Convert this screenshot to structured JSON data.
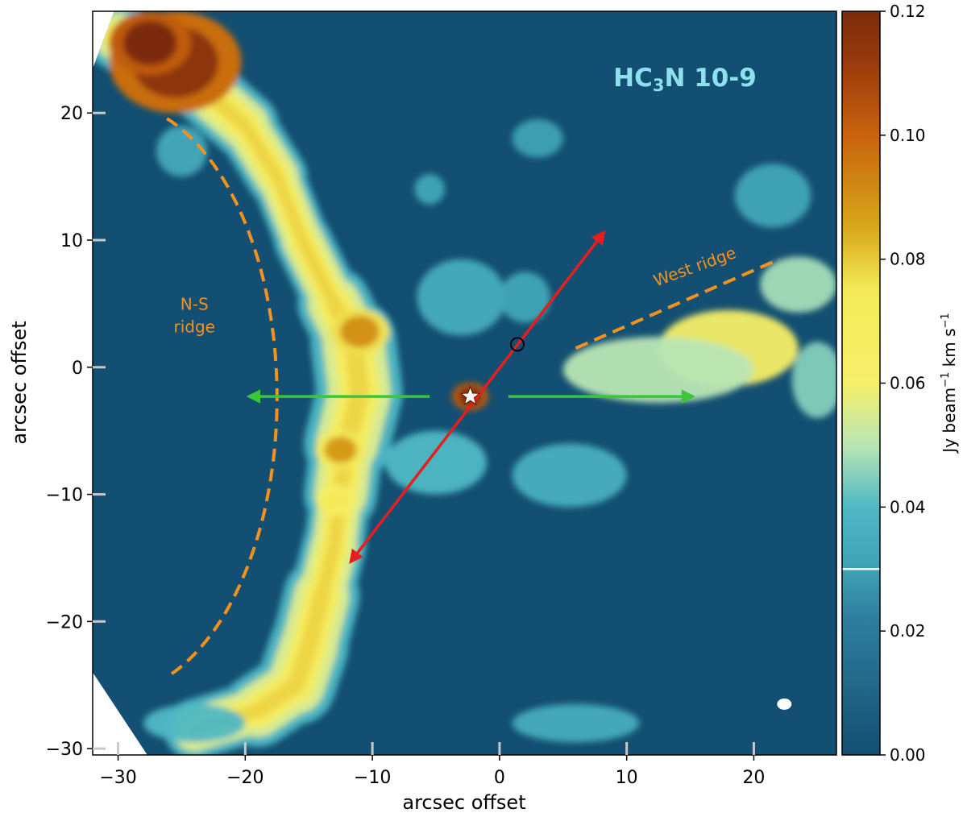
{
  "chart_data": {
    "type": "heatmap",
    "title": "HC3N 10-9",
    "title_parts": {
      "main": "HC",
      "sub": "3",
      "rest": "N 10-9"
    },
    "xlabel": "arcsec offset",
    "ylabel": "arcsec offset",
    "xlim": [
      -32,
      26.5
    ],
    "ylim": [
      -30.5,
      28
    ],
    "x_ticks": [
      -30,
      -20,
      -10,
      0,
      10,
      20
    ],
    "x_tick_labels": [
      "−30",
      "−20",
      "−10",
      "0",
      "10",
      "20"
    ],
    "y_ticks": [
      -30,
      -20,
      -10,
      0,
      10,
      20
    ],
    "y_tick_labels": [
      "−30",
      "−20",
      "−10",
      "0",
      "10",
      "20"
    ],
    "colorbar": {
      "label_main": "Jy beam",
      "label_sup1": "−1",
      "label_mid": " km s",
      "label_sup2": "−1",
      "range": [
        0.0,
        0.12
      ],
      "ticks": [
        0.0,
        0.02,
        0.04,
        0.06,
        0.08,
        0.1,
        0.12
      ],
      "tick_labels": [
        "0.00",
        "0.02",
        "0.04",
        "0.06",
        "0.08",
        "0.10",
        "0.12"
      ],
      "contour_level": 0.03
    },
    "colors": {
      "background_low": "#134f72",
      "teal": "#4fb8c4",
      "yellow": "#f6ef6a",
      "orange": "#c8630e",
      "brown": "#7b2c0a",
      "ridge_dash": "#f5921e",
      "outflow_red": "#e81d1d",
      "arrow_green": "#3bc63a",
      "title_color": "#8ee0ee"
    },
    "annotations": [
      {
        "text_lines": [
          "N-S",
          "ridge"
        ],
        "x": -24,
        "y": 4,
        "color": "#f5921e"
      },
      {
        "text": "West ridge",
        "x": 15.5,
        "y": 7.5,
        "color": "#f5921e",
        "rotation": -20
      }
    ],
    "ns_ridge_arc": {
      "center": [
        -30.5,
        -2.4
      ],
      "a": 13,
      "b": 23.3
    },
    "west_ridge_line": [
      [
        6,
        1.5
      ],
      [
        22,
        8.5
      ]
    ],
    "outflow_red": {
      "from": [
        8.2,
        10.6
      ],
      "to": [
        -11.7,
        -15.3
      ]
    },
    "green_arrows": [
      {
        "from": [
          -5.5,
          -2.3
        ],
        "to": [
          -19.7,
          -2.3
        ]
      },
      {
        "from": [
          0.7,
          -2.3
        ],
        "to": [
          15.2,
          -2.3
        ]
      }
    ],
    "star_source": [
      -2.3,
      -2.3
    ],
    "open_circle": [
      1.4,
      1.8
    ],
    "beam": [
      22.4,
      -26.5
    ],
    "emission": {
      "ridge_path": [
        [
          -30,
          26
        ],
        [
          -24,
          22.5
        ],
        [
          -20,
          19
        ],
        [
          -17.5,
          15
        ],
        [
          -15.5,
          10
        ],
        [
          -13,
          5
        ],
        [
          -11.5,
          2
        ],
        [
          -11,
          -2
        ],
        [
          -12,
          -6
        ],
        [
          -12.5,
          -10
        ],
        [
          -13,
          -14
        ],
        [
          -14,
          -18
        ],
        [
          -15,
          -22
        ],
        [
          -16,
          -25
        ],
        [
          -19,
          -27
        ],
        [
          -24,
          -28.5
        ]
      ],
      "ridge_width": [
        5,
        5.5,
        5,
        4.5,
        4,
        5,
        6.5,
        7,
        6.5,
        5,
        4.5,
        5.5,
        6.5,
        6,
        5.5,
        4
      ],
      "hotspots": [
        {
          "x": -25.5,
          "y": 24,
          "r": 4,
          "v": 0.115
        },
        {
          "x": -27.5,
          "y": 25.5,
          "r": 2.5,
          "v": 0.12
        },
        {
          "x": -11,
          "y": 2.8,
          "r": 1.8,
          "v": 0.09
        },
        {
          "x": -12.5,
          "y": -6.5,
          "r": 1.5,
          "v": 0.088
        },
        {
          "x": -12.8,
          "y": -10.5,
          "r": 1.2,
          "v": 0.075
        },
        {
          "x": -2.3,
          "y": -2.3,
          "r": 1.1,
          "v": 0.12
        }
      ],
      "blobs": [
        {
          "x": -3,
          "y": 5.5,
          "rx": 3.5,
          "ry": 3,
          "v": 0.035
        },
        {
          "x": 2,
          "y": 5.5,
          "rx": 2,
          "ry": 2,
          "v": 0.032
        },
        {
          "x": 18,
          "y": 1.5,
          "rx": 5.5,
          "ry": 3,
          "v": 0.064
        },
        {
          "x": 12.5,
          "y": -0.2,
          "rx": 7.5,
          "ry": 2.6,
          "v": 0.05
        },
        {
          "x": 23.5,
          "y": 6.5,
          "rx": 3,
          "ry": 2.2,
          "v": 0.048
        },
        {
          "x": 25,
          "y": -1,
          "rx": 2,
          "ry": 3,
          "v": 0.045
        },
        {
          "x": 5.5,
          "y": -8.5,
          "rx": 4.5,
          "ry": 2.5,
          "v": 0.036
        },
        {
          "x": -5,
          "y": -7.5,
          "rx": 4,
          "ry": 2.5,
          "v": 0.04
        },
        {
          "x": -25,
          "y": 17,
          "rx": 2,
          "ry": 2,
          "v": 0.033
        },
        {
          "x": -5.5,
          "y": 14,
          "rx": 1.2,
          "ry": 1.2,
          "v": 0.032
        },
        {
          "x": 3,
          "y": 18,
          "rx": 2,
          "ry": 1.5,
          "v": 0.03
        },
        {
          "x": 21.5,
          "y": 13.5,
          "rx": 3,
          "ry": 2.5,
          "v": 0.032
        },
        {
          "x": 6,
          "y": -28,
          "rx": 5,
          "ry": 1.5,
          "v": 0.035
        },
        {
          "x": -24,
          "y": -28,
          "rx": 4,
          "ry": 1.5,
          "v": 0.04
        }
      ]
    }
  }
}
